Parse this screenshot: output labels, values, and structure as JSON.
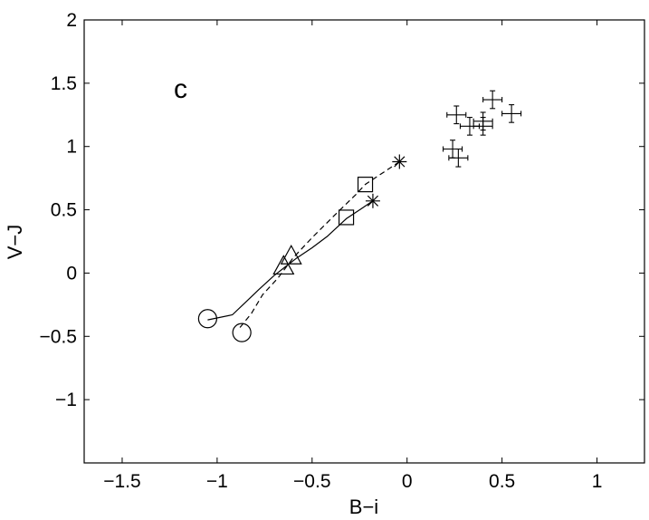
{
  "chart_data": {
    "type": "scatter",
    "title": "",
    "panel_label": "c",
    "xlabel": "B−i",
    "ylabel": "V−J",
    "xlim": [
      -1.7,
      1.25
    ],
    "ylim": [
      -1.5,
      2.0
    ],
    "xticks": [
      -1.5,
      -1,
      -0.5,
      0,
      0.5,
      1
    ],
    "xtick_labels": [
      "−1.5",
      "−1",
      "−0.5",
      "0",
      "0.5",
      "1"
    ],
    "yticks": [
      -1,
      -0.5,
      0,
      0.5,
      1,
      1.5,
      2
    ],
    "ytick_labels": [
      "−1",
      "−0.5",
      "0",
      "0.5",
      "1",
      "1.5",
      "2"
    ],
    "grid": false,
    "legend": "none",
    "series": [
      {
        "style": "solid",
        "curve": [
          [
            -1.05,
            -0.37
          ],
          [
            -0.92,
            -0.33
          ],
          [
            -0.85,
            -0.23
          ],
          [
            -0.78,
            -0.13
          ],
          [
            -0.7,
            -0.02
          ],
          [
            -0.64,
            0.05
          ],
          [
            -0.58,
            0.12
          ],
          [
            -0.5,
            0.2
          ],
          [
            -0.42,
            0.29
          ],
          [
            -0.32,
            0.43
          ],
          [
            -0.24,
            0.51
          ],
          [
            -0.18,
            0.57
          ]
        ],
        "markers": [
          {
            "symbol": "circle",
            "x": -1.05,
            "y": -0.36
          },
          {
            "symbol": "triangle",
            "x": -0.65,
            "y": 0.05
          },
          {
            "symbol": "square",
            "x": -0.32,
            "y": 0.44
          },
          {
            "symbol": "asterisk",
            "x": -0.18,
            "y": 0.57
          }
        ]
      },
      {
        "style": "dashed",
        "curve": [
          [
            -0.88,
            -0.43
          ],
          [
            -0.82,
            -0.32
          ],
          [
            -0.76,
            -0.17
          ],
          [
            -0.68,
            -0.04
          ],
          [
            -0.6,
            0.12
          ],
          [
            -0.5,
            0.28
          ],
          [
            -0.38,
            0.46
          ],
          [
            -0.27,
            0.62
          ],
          [
            -0.22,
            0.7
          ],
          [
            -0.12,
            0.8
          ],
          [
            -0.04,
            0.88
          ]
        ],
        "markers": [
          {
            "symbol": "circle",
            "x": -0.87,
            "y": -0.47
          },
          {
            "symbol": "triangle",
            "x": -0.61,
            "y": 0.13
          },
          {
            "symbol": "square",
            "x": -0.22,
            "y": 0.7
          },
          {
            "symbol": "asterisk",
            "x": -0.04,
            "y": 0.88
          }
        ]
      }
    ],
    "observations": [
      {
        "x": 0.26,
        "y": 1.25,
        "xerr": 0.05,
        "yerr": 0.07
      },
      {
        "x": 0.33,
        "y": 1.16,
        "xerr": 0.05,
        "yerr": 0.07
      },
      {
        "x": 0.4,
        "y": 1.2,
        "xerr": 0.05,
        "yerr": 0.07
      },
      {
        "x": 0.4,
        "y": 1.16,
        "xerr": 0.05,
        "yerr": 0.07
      },
      {
        "x": 0.45,
        "y": 1.37,
        "xerr": 0.05,
        "yerr": 0.07
      },
      {
        "x": 0.55,
        "y": 1.26,
        "xerr": 0.05,
        "yerr": 0.07
      },
      {
        "x": 0.24,
        "y": 0.98,
        "xerr": 0.05,
        "yerr": 0.07
      },
      {
        "x": 0.27,
        "y": 0.91,
        "xerr": 0.05,
        "yerr": 0.07
      }
    ]
  }
}
